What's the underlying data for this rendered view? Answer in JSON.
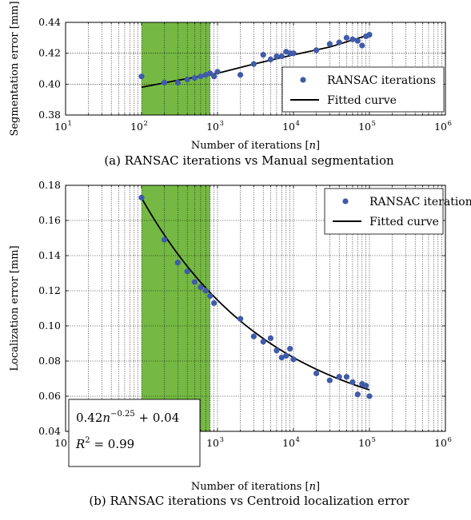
{
  "chart_data": [
    {
      "id": "a",
      "type": "scatter",
      "caption": "(a) RANSAC iterations vs Manual segmentation",
      "xlabel": "Number of iterations [n]",
      "ylabel": "Segmentation error [mm]",
      "xscale": "log",
      "xlim": [
        10,
        1000000
      ],
      "ylim": [
        0.38,
        0.44
      ],
      "x_ticks": [
        1,
        2,
        3,
        4,
        5,
        6
      ],
      "y_ticks": [
        "0.38",
        "0.40",
        "0.42",
        "0.44"
      ],
      "grid": true,
      "legend_position": "bottom-right",
      "highlight_band": {
        "x_from": 100,
        "x_to": 800,
        "color": "#75b944"
      },
      "series": [
        {
          "name": "RANSAC iterations",
          "kind": "markers",
          "color": "#3f5ba9",
          "points": [
            [
              100,
              0.405
            ],
            [
              200,
              0.401
            ],
            [
              300,
              0.401
            ],
            [
              400,
              0.403
            ],
            [
              500,
              0.404
            ],
            [
              600,
              0.405
            ],
            [
              700,
              0.406
            ],
            [
              800,
              0.407
            ],
            [
              900,
              0.405
            ],
            [
              1000,
              0.408
            ],
            [
              2000,
              0.406
            ],
            [
              3000,
              0.413
            ],
            [
              4000,
              0.419
            ],
            [
              5000,
              0.416
            ],
            [
              6000,
              0.418
            ],
            [
              7000,
              0.418
            ],
            [
              8000,
              0.421
            ],
            [
              9000,
              0.42
            ],
            [
              10000,
              0.42
            ],
            [
              20000,
              0.422
            ],
            [
              30000,
              0.426
            ],
            [
              40000,
              0.427
            ],
            [
              50000,
              0.43
            ],
            [
              60000,
              0.429
            ],
            [
              70000,
              0.428
            ],
            [
              80000,
              0.425
            ],
            [
              90000,
              0.431
            ],
            [
              100000,
              0.432
            ]
          ]
        },
        {
          "name": "Fitted curve",
          "kind": "line",
          "color": "#000000",
          "points": [
            [
              100,
              0.398
            ],
            [
              300,
              0.4025
            ],
            [
              1000,
              0.407
            ],
            [
              3000,
              0.413
            ],
            [
              10000,
              0.419
            ],
            [
              30000,
              0.424
            ],
            [
              100000,
              0.432
            ]
          ]
        }
      ]
    },
    {
      "id": "b",
      "type": "scatter",
      "caption": "(b) RANSAC iterations vs Centroid localization error",
      "xlabel": "Number of iterations [n]",
      "ylabel": "Localization error [mm]",
      "xscale": "log",
      "xlim": [
        10,
        1000000
      ],
      "ylim": [
        0.04,
        0.18
      ],
      "x_ticks": [
        1,
        2,
        3,
        4,
        5,
        6
      ],
      "y_ticks": [
        "0.04",
        "0.06",
        "0.08",
        "0.10",
        "0.12",
        "0.14",
        "0.16",
        "0.18"
      ],
      "grid": true,
      "legend_position": "top-right",
      "highlight_band": {
        "x_from": 100,
        "x_to": 800,
        "color": "#75b944"
      },
      "annotation": {
        "formula": "0.42n^{-0.25} + 0.04",
        "r2": "R^2 = 0.99"
      },
      "series": [
        {
          "name": "RANSAC iterations",
          "kind": "markers",
          "color": "#3f5ba9",
          "points": [
            [
              100,
              0.173
            ],
            [
              200,
              0.149
            ],
            [
              300,
              0.136
            ],
            [
              400,
              0.131
            ],
            [
              500,
              0.125
            ],
            [
              600,
              0.122
            ],
            [
              700,
              0.12
            ],
            [
              800,
              0.117
            ],
            [
              900,
              0.113
            ],
            [
              2000,
              0.104
            ],
            [
              3000,
              0.094
            ],
            [
              4000,
              0.091
            ],
            [
              5000,
              0.093
            ],
            [
              6000,
              0.086
            ],
            [
              7000,
              0.082
            ],
            [
              8000,
              0.083
            ],
            [
              9000,
              0.087
            ],
            [
              10000,
              0.081
            ],
            [
              20000,
              0.073
            ],
            [
              30000,
              0.069
            ],
            [
              40000,
              0.071
            ],
            [
              50000,
              0.071
            ],
            [
              60000,
              0.068
            ],
            [
              70000,
              0.061
            ],
            [
              80000,
              0.067
            ],
            [
              90000,
              0.066
            ],
            [
              100000,
              0.06
            ]
          ]
        },
        {
          "name": "Fitted curve",
          "kind": "line",
          "color": "#000000",
          "formula": {
            "a": 0.42,
            "b": -0.25,
            "c": 0.04
          }
        }
      ]
    }
  ]
}
